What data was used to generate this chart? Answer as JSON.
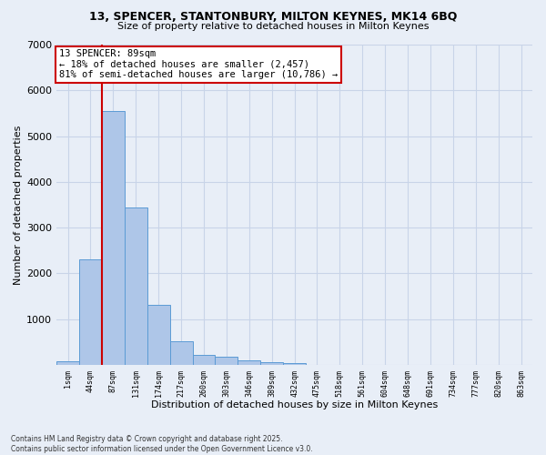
{
  "title_line1": "13, SPENCER, STANTONBURY, MILTON KEYNES, MK14 6BQ",
  "title_line2": "Size of property relative to detached houses in Milton Keynes",
  "xlabel": "Distribution of detached houses by size in Milton Keynes",
  "ylabel": "Number of detached properties",
  "categories": [
    "1sqm",
    "44sqm",
    "87sqm",
    "131sqm",
    "174sqm",
    "217sqm",
    "260sqm",
    "303sqm",
    "346sqm",
    "389sqm",
    "432sqm",
    "475sqm",
    "518sqm",
    "561sqm",
    "604sqm",
    "648sqm",
    "691sqm",
    "734sqm",
    "777sqm",
    "820sqm",
    "863sqm"
  ],
  "values": [
    80,
    2300,
    5550,
    3450,
    1320,
    520,
    215,
    185,
    90,
    55,
    30,
    0,
    0,
    0,
    0,
    0,
    0,
    0,
    0,
    0,
    0
  ],
  "bar_color": "#aec6e8",
  "bar_edge_color": "#5b9bd5",
  "vline_color": "#cc0000",
  "annotation_text": "13 SPENCER: 89sqm\n← 18% of detached houses are smaller (2,457)\n81% of semi-detached houses are larger (10,786) →",
  "annotation_box_color": "#ffffff",
  "annotation_box_edge_color": "#cc0000",
  "ylim": [
    0,
    7000
  ],
  "yticks": [
    0,
    1000,
    2000,
    3000,
    4000,
    5000,
    6000,
    7000
  ],
  "background_color": "#e8eef7",
  "grid_color": "#c8d4e8",
  "footer_line1": "Contains HM Land Registry data © Crown copyright and database right 2025.",
  "footer_line2": "Contains public sector information licensed under the Open Government Licence v3.0."
}
